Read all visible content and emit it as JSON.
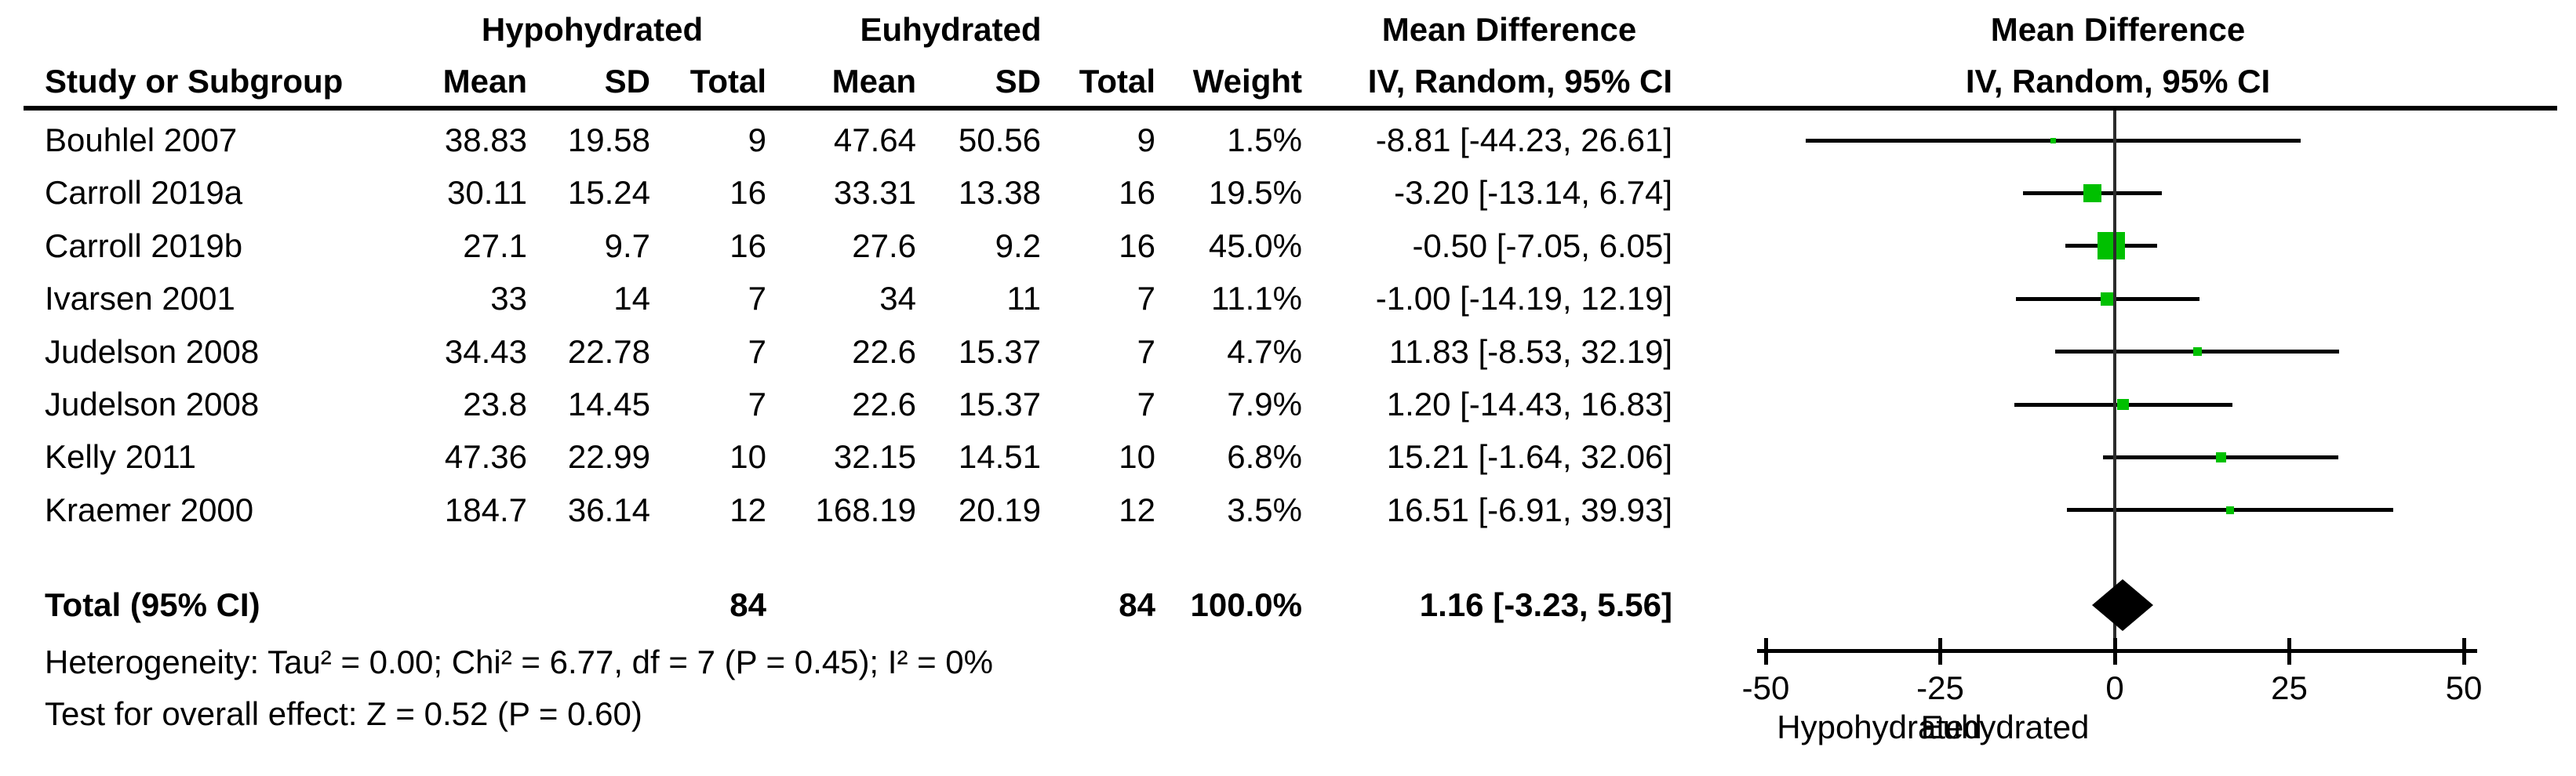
{
  "chart_data": {
    "type": "scatter",
    "subtype": "forest-plot-mean-difference",
    "title": "Mean Difference",
    "effect_label": "IV, Random, 95% CI",
    "group_left": "Hypohydrated",
    "group_right": "Euhydrated",
    "xlim": [
      -50,
      50
    ],
    "x_ticks": [
      "-50",
      "-25",
      "0",
      "25",
      "50"
    ],
    "x_tick_values": [
      -50,
      -25,
      0,
      25,
      50
    ],
    "axis_side_label_left": "Hypohydrated",
    "axis_side_label_right": "Euhydrated",
    "marker_color": "#00c000",
    "line_color": "#000000",
    "text_color": "#000000",
    "columns": {
      "study": "Study or Subgroup",
      "mean": "Mean",
      "sd": "SD",
      "total": "Total",
      "weight": "Weight",
      "ci": "IV, Random, 95% CI",
      "md_header": "Mean Difference"
    },
    "rows": [
      {
        "study": "Bouhlel 2007",
        "h_mean": "38.83",
        "h_sd": "19.58",
        "h_total": "9",
        "e_mean": "47.64",
        "e_sd": "50.56",
        "e_total": "9",
        "weight": "1.5%",
        "weight_pct": 1.5,
        "ci_text": "-8.81 [-44.23, 26.61]",
        "est": -8.81,
        "lo": -44.23,
        "hi": 26.61
      },
      {
        "study": "Carroll 2019a",
        "h_mean": "30.11",
        "h_sd": "15.24",
        "h_total": "16",
        "e_mean": "33.31",
        "e_sd": "13.38",
        "e_total": "16",
        "weight": "19.5%",
        "weight_pct": 19.5,
        "ci_text": "-3.20 [-13.14, 6.74]",
        "est": -3.2,
        "lo": -13.14,
        "hi": 6.74
      },
      {
        "study": "Carroll 2019b",
        "h_mean": "27.1",
        "h_sd": "9.7",
        "h_total": "16",
        "e_mean": "27.6",
        "e_sd": "9.2",
        "e_total": "16",
        "weight": "45.0%",
        "weight_pct": 45.0,
        "ci_text": "-0.50 [-7.05, 6.05]",
        "est": -0.5,
        "lo": -7.05,
        "hi": 6.05
      },
      {
        "study": "Ivarsen 2001",
        "h_mean": "33",
        "h_sd": "14",
        "h_total": "7",
        "e_mean": "34",
        "e_sd": "11",
        "e_total": "7",
        "weight": "11.1%",
        "weight_pct": 11.1,
        "ci_text": "-1.00 [-14.19, 12.19]",
        "est": -1.0,
        "lo": -14.19,
        "hi": 12.19
      },
      {
        "study": "Judelson 2008",
        "h_mean": "34.43",
        "h_sd": "22.78",
        "h_total": "7",
        "e_mean": "22.6",
        "e_sd": "15.37",
        "e_total": "7",
        "weight": "4.7%",
        "weight_pct": 4.7,
        "ci_text": "11.83 [-8.53, 32.19]",
        "est": 11.83,
        "lo": -8.53,
        "hi": 32.19
      },
      {
        "study": "Judelson 2008",
        "h_mean": "23.8",
        "h_sd": "14.45",
        "h_total": "7",
        "e_mean": "22.6",
        "e_sd": "15.37",
        "e_total": "7",
        "weight": "7.9%",
        "weight_pct": 7.9,
        "ci_text": "1.20 [-14.43, 16.83]",
        "est": 1.2,
        "lo": -14.43,
        "hi": 16.83
      },
      {
        "study": "Kelly 2011",
        "h_mean": "47.36",
        "h_sd": "22.99",
        "h_total": "10",
        "e_mean": "32.15",
        "e_sd": "14.51",
        "e_total": "10",
        "weight": "6.8%",
        "weight_pct": 6.8,
        "ci_text": "15.21 [-1.64, 32.06]",
        "est": 15.21,
        "lo": -1.64,
        "hi": 32.06
      },
      {
        "study": "Kraemer 2000",
        "h_mean": "184.7",
        "h_sd": "36.14",
        "h_total": "12",
        "e_mean": "168.19",
        "e_sd": "20.19",
        "e_total": "12",
        "weight": "3.5%",
        "weight_pct": 3.5,
        "ci_text": "16.51 [-6.91, 39.93]",
        "est": 16.51,
        "lo": -6.91,
        "hi": 39.93
      }
    ],
    "total": {
      "label": "Total (95% CI)",
      "h_total": "84",
      "e_total": "84",
      "weight": "100.0%",
      "ci_text": "1.16 [-3.23, 5.56]",
      "est": 1.16,
      "lo": -3.23,
      "hi": 5.56
    },
    "footer": {
      "heterogeneity": "Heterogeneity: Tau² = 0.00; Chi² = 6.77, df = 7 (P = 0.45); I² = 0%",
      "overall_effect": "Test for overall effect: Z = 0.52 (P = 0.60)"
    }
  }
}
